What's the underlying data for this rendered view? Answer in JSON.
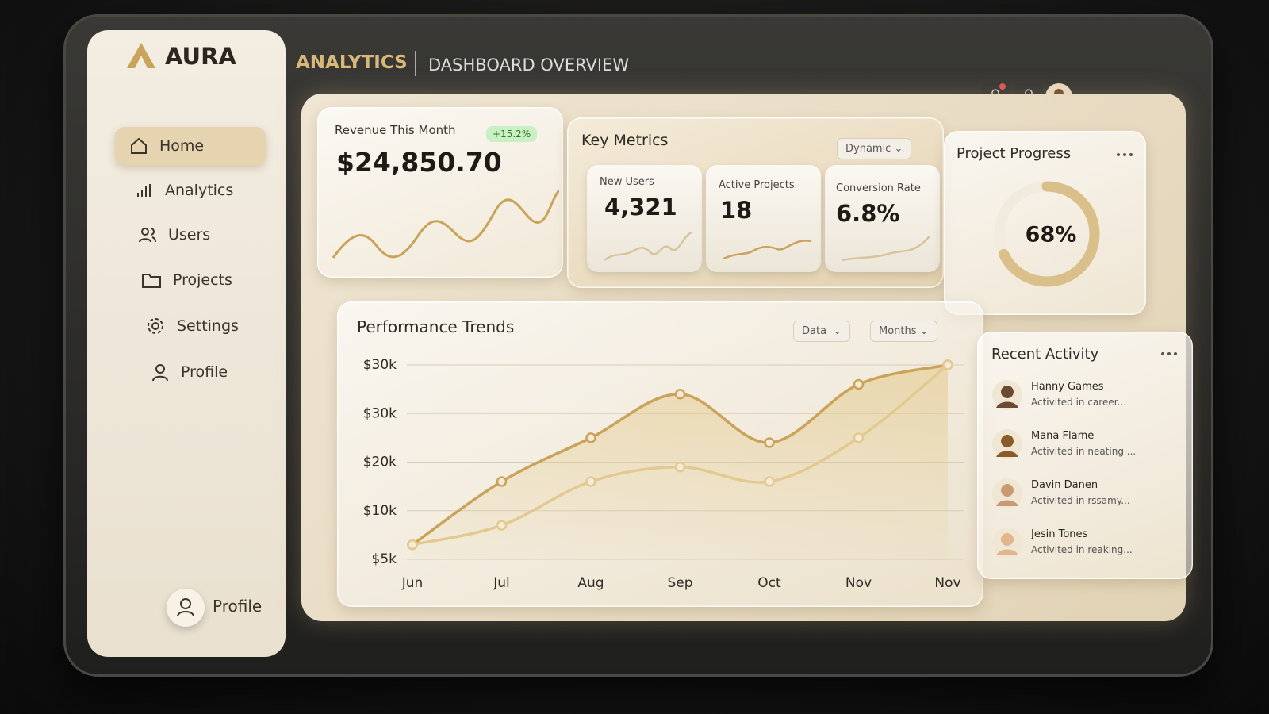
{
  "brand": "AURA",
  "header": {
    "section": "ANALYTICS",
    "title": "DASHBOARD OVERVIEW"
  },
  "nav": [
    "Home",
    "Analytics",
    "Users",
    "Projects",
    "Settings",
    "Profile"
  ],
  "footer_profile": "Profile",
  "revenue": {
    "label": "Revenue This Month",
    "value": "$24,850.70",
    "change": "+15.2%"
  },
  "key_metrics": {
    "title": "Key Metrics",
    "filter": "Dynamic",
    "items": [
      {
        "label": "New Users",
        "value": "4,321"
      },
      {
        "label": "Active Projects",
        "value": "18"
      },
      {
        "label": "Conversion Rate",
        "value": "6.8%"
      }
    ]
  },
  "project_progress": {
    "title": "Project Progress",
    "value": 68,
    "value_label": "68%"
  },
  "performance": {
    "title": "Performance Trends",
    "filters": [
      "Data",
      "Months"
    ],
    "chart_data": {
      "type": "line",
      "categories": [
        "Jun",
        "Jul",
        "Aug",
        "Sep",
        "Oct",
        "Nov",
        "Nov"
      ],
      "series": [
        {
          "color": "#c9a35a",
          "values": [
            0.3,
            1.6,
            2.5,
            3.4,
            2.4,
            3.6,
            4.0
          ]
        },
        {
          "color": "#e2c98f",
          "values": [
            0.3,
            0.7,
            1.6,
            1.9,
            1.6,
            2.5,
            4.0
          ]
        }
      ],
      "ylim": [
        0,
        4
      ],
      "yticks": [
        {
          "value": 0,
          "label": "$5k"
        },
        {
          "value": 1,
          "label": "$10k"
        },
        {
          "value": 2,
          "label": "$20k"
        },
        {
          "value": 3,
          "label": "$30k"
        },
        {
          "value": 4,
          "label": "$30k"
        }
      ],
      "grid": true
    }
  },
  "recent_activity": {
    "title": "Recent Activity",
    "items": [
      {
        "name": "Hanny Games",
        "detail": "Activited in career..."
      },
      {
        "name": "Mana Flame",
        "detail": "Activited in neating ..."
      },
      {
        "name": "Davin Danen",
        "detail": "Activited in rssamy..."
      },
      {
        "name": "Jesin Tones",
        "detail": "Activited in reaking..."
      }
    ]
  }
}
